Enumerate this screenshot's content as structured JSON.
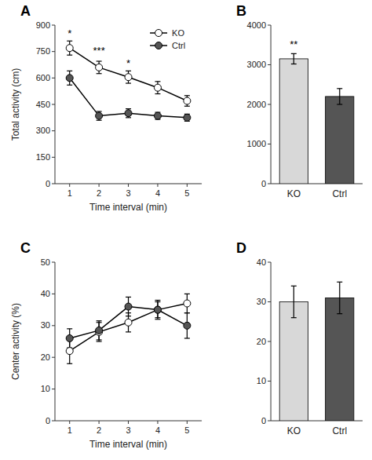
{
  "chart_data": [
    {
      "type": "line",
      "title": "A",
      "x": [
        1,
        2,
        3,
        4,
        5
      ],
      "xlabel": "Time interval (min)",
      "ylabel": "Total activity (cm)",
      "xlim": [
        0.5,
        5.5
      ],
      "xticks": [
        1,
        2,
        3,
        4,
        5
      ],
      "ylim": [
        0,
        900
      ],
      "yticks": [
        0,
        150,
        300,
        450,
        600,
        750,
        900
      ],
      "series": [
        {
          "name": "KO",
          "color": "#ffffff",
          "values": [
            770,
            660,
            605,
            545,
            470
          ],
          "errors": [
            40,
            35,
            35,
            35,
            30
          ]
        },
        {
          "name": "Ctrl",
          "color": "#555555",
          "values": [
            600,
            385,
            400,
            385,
            375
          ],
          "errors": [
            40,
            25,
            25,
            20,
            20
          ]
        }
      ],
      "marker": "circle",
      "line_style": "solid",
      "annotations": [
        {
          "x": 1,
          "y": 830,
          "text": "*"
        },
        {
          "x": 2,
          "y": 730,
          "text": "***"
        },
        {
          "x": 3,
          "y": 660,
          "text": "*"
        }
      ],
      "legend": "upper right",
      "grid": false
    },
    {
      "type": "bar",
      "title": "B",
      "categories": [
        "KO",
        "Ctrl"
      ],
      "values": [
        3150,
        2200
      ],
      "errors": [
        130,
        200
      ],
      "colors": [
        "#d8d8d8",
        "#555555"
      ],
      "ylim": [
        0,
        4000
      ],
      "yticks": [
        0,
        1000,
        2000,
        3000,
        4000
      ],
      "annotations": [
        {
          "x": "KO",
          "y": 3400,
          "text": "**"
        }
      ],
      "grid": false
    },
    {
      "type": "line",
      "title": "C",
      "x": [
        1,
        2,
        3,
        4,
        5
      ],
      "xlabel": "Time interval (min)",
      "ylabel": "Center activity (%)",
      "xlim": [
        0.5,
        5.5
      ],
      "xticks": [
        1,
        2,
        3,
        4,
        5
      ],
      "ylim": [
        0,
        50
      ],
      "yticks": [
        0,
        10,
        20,
        30,
        40,
        50
      ],
      "series": [
        {
          "name": "KO",
          "color": "#ffffff",
          "values": [
            22,
            28,
            31,
            35,
            37
          ],
          "errors": [
            4,
            3,
            3,
            3,
            3
          ]
        },
        {
          "name": "Ctrl",
          "color": "#555555",
          "values": [
            26,
            28.5,
            36,
            35,
            30
          ],
          "errors": [
            3,
            3,
            3,
            2.5,
            4
          ]
        }
      ],
      "marker": "circle",
      "line_style": "solid",
      "grid": false
    },
    {
      "type": "bar",
      "title": "D",
      "categories": [
        "KO",
        "Ctrl"
      ],
      "values": [
        30,
        31
      ],
      "errors": [
        4,
        4
      ],
      "colors": [
        "#d8d8d8",
        "#555555"
      ],
      "ylim": [
        0,
        40
      ],
      "yticks": [
        0,
        10,
        20,
        30,
        40
      ],
      "grid": false
    }
  ]
}
